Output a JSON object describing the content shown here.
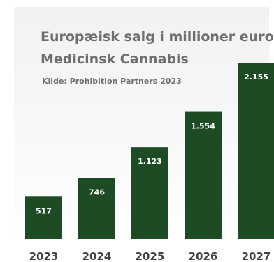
{
  "chart_data": {
    "type": "bar",
    "title": "Europæisk salg i millioner euro",
    "subtitle": "Medicinsk Cannabis",
    "source": "Kilde: Prohibition Partners 2023",
    "categories": [
      "2023",
      "2024",
      "2025",
      "2026",
      "2027"
    ],
    "values": [
      517,
      746,
      1123,
      1554,
      2155
    ],
    "data_labels": [
      "517",
      "746",
      "1.123",
      "1.554",
      "2.155"
    ],
    "ylim": [
      0,
      2155
    ],
    "grid": false,
    "legend": "none",
    "xlabel": "",
    "ylabel": "",
    "colors": {
      "bar": "#1d4b24",
      "bar_label": "#ffffff",
      "tick_label": "#444444"
    }
  }
}
